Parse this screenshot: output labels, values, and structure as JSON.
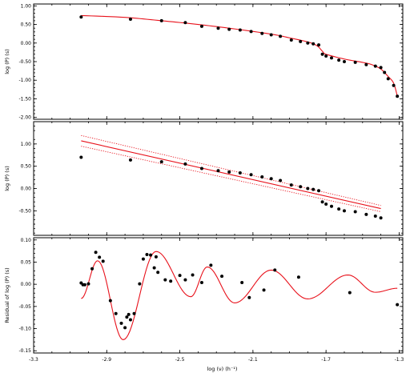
{
  "chart_data": [
    {
      "type": "scatter",
      "xlim": [
        -3.3,
        -1.28
      ],
      "ylim": [
        -2.05,
        1.05
      ],
      "yticks": [
        1.0,
        0.5,
        0.0,
        -0.5,
        -1.0,
        -1.5,
        -2.0
      ],
      "ytick_labels": [
        "1.00",
        "0.50",
        "0.00",
        "-0.50",
        "-1.00",
        "-1.50",
        "-2.00"
      ],
      "ylabel": "log (P) (s)",
      "grid": false,
      "points": [
        [
          -3.04,
          0.7
        ],
        [
          -2.77,
          0.64
        ],
        [
          -2.6,
          0.6
        ],
        [
          -2.47,
          0.55
        ],
        [
          -2.38,
          0.45
        ],
        [
          -2.29,
          0.4
        ],
        [
          -2.23,
          0.37
        ],
        [
          -2.17,
          0.35
        ],
        [
          -2.11,
          0.31
        ],
        [
          -2.05,
          0.26
        ],
        [
          -2.0,
          0.22
        ],
        [
          -1.95,
          0.18
        ],
        [
          -1.89,
          0.08
        ],
        [
          -1.84,
          0.04
        ],
        [
          -1.8,
          0.0
        ],
        [
          -1.77,
          -0.02
        ],
        [
          -1.74,
          -0.05
        ],
        [
          -1.72,
          -0.3
        ],
        [
          -1.7,
          -0.35
        ],
        [
          -1.67,
          -0.4
        ],
        [
          -1.63,
          -0.46
        ],
        [
          -1.6,
          -0.5
        ],
        [
          -1.54,
          -0.52
        ],
        [
          -1.48,
          -0.58
        ],
        [
          -1.43,
          -0.62
        ],
        [
          -1.4,
          -0.66
        ],
        [
          -1.38,
          -0.79
        ],
        [
          -1.36,
          -0.96
        ],
        [
          -1.33,
          -1.14
        ],
        [
          -1.31,
          -1.43
        ]
      ],
      "fit_curve": [
        [
          -3.04,
          0.74
        ],
        [
          -2.8,
          0.69
        ],
        [
          -2.6,
          0.6
        ],
        [
          -2.4,
          0.5
        ],
        [
          -2.2,
          0.38
        ],
        [
          -2.0,
          0.24
        ],
        [
          -1.9,
          0.14
        ],
        [
          -1.8,
          0.03
        ],
        [
          -1.75,
          -0.07
        ],
        [
          -1.72,
          -0.22
        ],
        [
          -1.7,
          -0.3
        ],
        [
          -1.6,
          -0.43
        ],
        [
          -1.5,
          -0.52
        ],
        [
          -1.45,
          -0.58
        ],
        [
          -1.4,
          -0.7
        ],
        [
          -1.36,
          -0.9
        ],
        [
          -1.33,
          -1.08
        ],
        [
          -1.31,
          -1.43
        ]
      ]
    },
    {
      "type": "scatter",
      "xlim": [
        -3.3,
        -1.28
      ],
      "ylim": [
        -1.05,
        1.5
      ],
      "yticks": [
        1.0,
        0.5,
        0.0,
        -0.5
      ],
      "ytick_labels": [
        "1.00",
        "0.50",
        "0.00",
        "-0.50"
      ],
      "ylabel": "log (P) (s)",
      "grid": false,
      "points": [
        [
          -3.04,
          0.7
        ],
        [
          -2.77,
          0.64
        ],
        [
          -2.6,
          0.6
        ],
        [
          -2.47,
          0.55
        ],
        [
          -2.38,
          0.45
        ],
        [
          -2.29,
          0.4
        ],
        [
          -2.23,
          0.37
        ],
        [
          -2.17,
          0.35
        ],
        [
          -2.11,
          0.31
        ],
        [
          -2.05,
          0.26
        ],
        [
          -2.0,
          0.22
        ],
        [
          -1.95,
          0.18
        ],
        [
          -1.89,
          0.08
        ],
        [
          -1.84,
          0.04
        ],
        [
          -1.8,
          0.0
        ],
        [
          -1.77,
          -0.02
        ],
        [
          -1.74,
          -0.05
        ],
        [
          -1.72,
          -0.3
        ],
        [
          -1.7,
          -0.35
        ],
        [
          -1.67,
          -0.4
        ],
        [
          -1.63,
          -0.46
        ],
        [
          -1.6,
          -0.5
        ],
        [
          -1.54,
          -0.52
        ],
        [
          -1.48,
          -0.58
        ],
        [
          -1.43,
          -0.62
        ],
        [
          -1.4,
          -0.66
        ]
      ],
      "fit_line": [
        [
          -3.04,
          1.07
        ],
        [
          -1.4,
          -0.45
        ]
      ],
      "band_upper": [
        [
          -3.04,
          1.19
        ],
        [
          -1.4,
          -0.38
        ]
      ],
      "band_lower": [
        [
          -3.04,
          0.95
        ],
        [
          -1.4,
          -0.52
        ]
      ]
    },
    {
      "type": "scatter",
      "xlim": [
        -3.3,
        -1.28
      ],
      "ylim": [
        -0.155,
        0.105
      ],
      "yticks": [
        0.1,
        0.05,
        0.0,
        -0.05,
        -0.1,
        -0.15
      ],
      "ytick_labels": [
        "0.10",
        "0.05",
        "0.00",
        "-0.05",
        "-0.10",
        "-0.15"
      ],
      "xticks": [
        -3.3,
        -2.9,
        -2.5,
        -2.1,
        -1.7,
        -1.3
      ],
      "xtick_labels": [
        "-3.3",
        "-2.9",
        "-2.5",
        "-2.1",
        "-1.7",
        "-1.3"
      ],
      "xlabel": "log (ν) (h⁻¹)",
      "ylabel": "Residual of log (P) (s)",
      "grid": false,
      "points": [
        [
          -3.04,
          0.003
        ],
        [
          -3.03,
          -0.001
        ],
        [
          -3.02,
          -0.001
        ],
        [
          -3.0,
          0.001
        ],
        [
          -2.98,
          0.035
        ],
        [
          -2.96,
          0.072
        ],
        [
          -2.94,
          0.061
        ],
        [
          -2.92,
          0.052
        ],
        [
          -2.88,
          -0.037
        ],
        [
          -2.85,
          -0.066
        ],
        [
          -2.82,
          -0.088
        ],
        [
          -2.8,
          -0.098
        ],
        [
          -2.79,
          -0.074
        ],
        [
          -2.78,
          -0.068
        ],
        [
          -2.77,
          -0.08
        ],
        [
          -2.75,
          -0.066
        ],
        [
          -2.72,
          0.001
        ],
        [
          -2.7,
          0.057
        ],
        [
          -2.68,
          0.067
        ],
        [
          -2.66,
          0.066
        ],
        [
          -2.64,
          0.037
        ],
        [
          -2.63,
          0.062
        ],
        [
          -2.62,
          0.027
        ],
        [
          -2.58,
          0.01
        ],
        [
          -2.55,
          0.007
        ],
        [
          -2.5,
          0.02
        ],
        [
          -2.47,
          0.01
        ],
        [
          -2.43,
          0.021
        ],
        [
          -2.38,
          0.004
        ],
        [
          -2.33,
          0.043
        ],
        [
          -2.27,
          0.018
        ],
        [
          -2.16,
          0.004
        ],
        [
          -2.12,
          -0.03
        ],
        [
          -2.04,
          -0.013
        ],
        [
          -1.98,
          0.032
        ],
        [
          -1.85,
          0.016
        ],
        [
          -1.57,
          -0.019
        ],
        [
          -1.31,
          -0.046
        ]
      ],
      "fit_curve": {
        "form": "damped_sine",
        "x_range": [
          -3.04,
          -1.31
        ],
        "envelope": [
          [
            -3.04,
            0.02
          ],
          [
            -2.9,
            0.075
          ],
          [
            -2.8,
            0.085
          ],
          [
            -2.6,
            0.07
          ],
          [
            -2.4,
            0.045
          ],
          [
            -2.2,
            0.035
          ],
          [
            -1.9,
            0.025
          ],
          [
            -1.5,
            0.02
          ],
          [
            -1.31,
            0.02
          ]
        ],
        "peaks": [
          [
            -2.95,
            0.053
          ],
          [
            -2.81,
            -0.125
          ],
          [
            -2.63,
            0.074
          ],
          [
            -2.44,
            -0.028
          ],
          [
            -2.35,
            0.039
          ],
          [
            -2.2,
            -0.042
          ],
          [
            -2.0,
            0.032
          ],
          [
            -1.8,
            -0.033
          ],
          [
            -1.58,
            0.021
          ],
          [
            -1.43,
            -0.018
          ]
        ],
        "y_end": -0.009
      }
    }
  ]
}
